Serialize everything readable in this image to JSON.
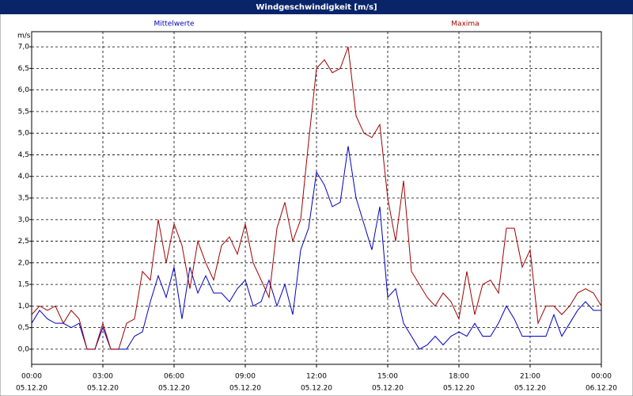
{
  "chart_data": {
    "type": "line",
    "title": "Windgeschwindigkeit [m/s]",
    "ylabel": "m/s",
    "x": [
      0,
      20,
      40,
      60,
      80,
      100,
      120,
      140,
      160,
      180,
      200,
      220,
      240,
      260,
      280,
      300,
      320,
      340,
      360,
      380,
      400,
      420,
      440,
      460,
      480,
      500,
      520,
      540,
      560,
      580,
      600,
      620,
      640,
      660,
      680,
      700,
      720,
      740,
      760,
      780,
      800,
      820,
      840,
      860,
      880,
      900,
      920,
      940,
      960,
      980,
      1000,
      1020,
      1040,
      1060,
      1080,
      1100,
      1120,
      1140,
      1160,
      1180,
      1200,
      1220,
      1240,
      1260,
      1280,
      1300,
      1320,
      1340,
      1360,
      1380,
      1400,
      1420,
      1440
    ],
    "series": [
      {
        "name": "Mittelwerte",
        "color": "#0000c0",
        "values": [
          0.6,
          0.9,
          0.7,
          0.6,
          0.6,
          0.5,
          0.6,
          0.0,
          0.0,
          0.5,
          0.0,
          0.0,
          0.0,
          0.3,
          0.4,
          1.1,
          1.7,
          1.2,
          1.9,
          0.7,
          1.9,
          1.3,
          1.7,
          1.3,
          1.3,
          1.1,
          1.4,
          1.6,
          1.0,
          1.1,
          1.6,
          1.0,
          1.5,
          0.8,
          2.3,
          2.8,
          4.1,
          3.8,
          3.3,
          3.4,
          4.7,
          3.5,
          2.9,
          2.3,
          3.3,
          1.2,
          1.4,
          0.6,
          0.3,
          0.0,
          0.1,
          0.3,
          0.1,
          0.3,
          0.4,
          0.3,
          0.6,
          0.3,
          0.3,
          0.6,
          1.0,
          0.7,
          0.3,
          0.3,
          0.3,
          0.3,
          0.8,
          0.3,
          0.6,
          0.9,
          1.1,
          0.9,
          0.9
        ]
      },
      {
        "name": "Maxima",
        "color": "#a00000",
        "values": [
          0.8,
          1.0,
          0.9,
          1.0,
          0.6,
          0.9,
          0.7,
          0.0,
          0.0,
          0.6,
          0.0,
          0.0,
          0.6,
          0.7,
          1.8,
          1.6,
          3.0,
          2.0,
          2.9,
          2.4,
          1.4,
          2.5,
          2.0,
          1.6,
          2.4,
          2.6,
          2.2,
          2.9,
          2.0,
          1.6,
          1.2,
          2.8,
          3.4,
          2.5,
          3.0,
          4.8,
          6.5,
          6.7,
          6.4,
          6.5,
          7.0,
          5.4,
          5.0,
          4.9,
          5.2,
          3.5,
          2.5,
          3.9,
          1.8,
          1.5,
          1.2,
          1.0,
          1.3,
          1.1,
          0.7,
          1.8,
          0.8,
          1.5,
          1.6,
          1.3,
          2.8,
          2.8,
          1.9,
          2.3,
          0.6,
          1.0,
          1.0,
          0.8,
          1.0,
          1.3,
          1.4,
          1.3,
          1.0
        ]
      }
    ],
    "xlim": [
      0,
      1440
    ],
    "xticks": [
      {
        "value": 0,
        "label": "00:00"
      },
      {
        "value": 180,
        "label": "03:00"
      },
      {
        "value": 360,
        "label": "06:00"
      },
      {
        "value": 540,
        "label": "09:00"
      },
      {
        "value": 720,
        "label": "12:00"
      },
      {
        "value": 900,
        "label": "15:00"
      },
      {
        "value": 1080,
        "label": "18:00"
      },
      {
        "value": 1260,
        "label": "21:00"
      },
      {
        "value": 1440,
        "label": "00:00"
      }
    ],
    "xtick_dates": [
      "05.12.20",
      "05.12.20",
      "05.12.20",
      "05.12.20",
      "05.12.20",
      "05.12.20",
      "05.12.20",
      "05.12.20",
      "06.12.20"
    ],
    "ylim": [
      -0.35,
      7.35
    ],
    "yticks": [
      {
        "value": 0,
        "label": "0,0"
      },
      {
        "value": 0.5,
        "label": "0,5"
      },
      {
        "value": 1,
        "label": "1,0"
      },
      {
        "value": 1.5,
        "label": "1,5"
      },
      {
        "value": 2,
        "label": "2,0"
      },
      {
        "value": 2.5,
        "label": "2,5"
      },
      {
        "value": 3,
        "label": "3,0"
      },
      {
        "value": 3.5,
        "label": "3,5"
      },
      {
        "value": 4,
        "label": "4,0"
      },
      {
        "value": 4.5,
        "label": "4,5"
      },
      {
        "value": 5,
        "label": "5,0"
      },
      {
        "value": 5.5,
        "label": "5,5"
      },
      {
        "value": 6,
        "label": "6,0"
      },
      {
        "value": 6.5,
        "label": "6,5"
      },
      {
        "value": 7,
        "label": "7,0"
      }
    ],
    "grid": true
  }
}
